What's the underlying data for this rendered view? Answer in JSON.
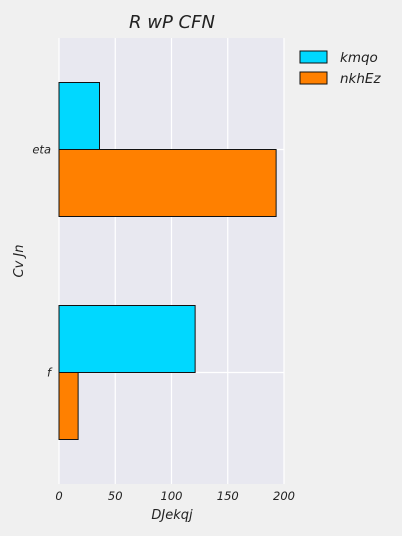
{
  "chart_data": {
    "type": "bar",
    "orientation": "horizontal",
    "title": "R wP CFN",
    "xlabel": "DJekqj",
    "ylabel": "Cv Jn",
    "xlim": [
      0,
      200
    ],
    "xticks": [
      0,
      50,
      100,
      150,
      200
    ],
    "categories": [
      "eta",
      "f"
    ],
    "series": [
      {
        "name": "kmqo",
        "values": [
          36,
          121
        ],
        "color": "#00d8ff"
      },
      {
        "name": "nkhEz",
        "values": [
          193,
          17
        ],
        "color": "#ff8000"
      }
    ],
    "grid": true,
    "legend": "outside-top-right"
  }
}
